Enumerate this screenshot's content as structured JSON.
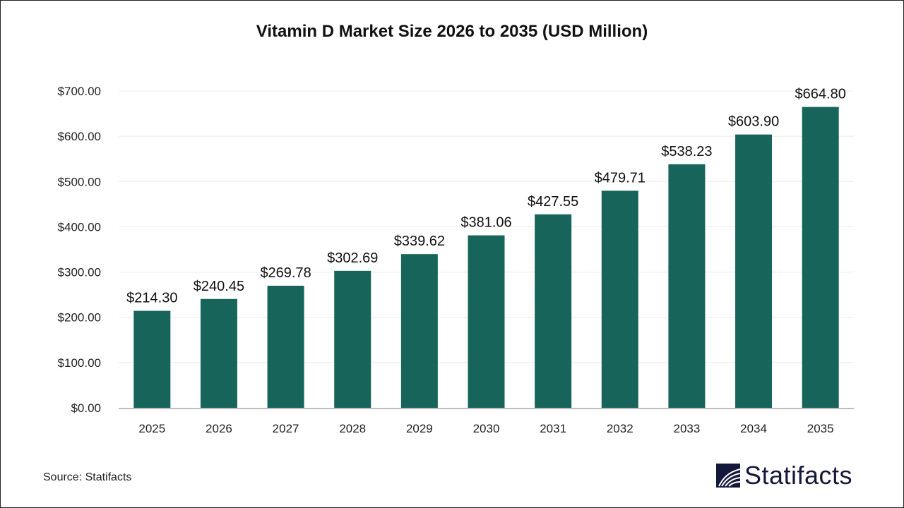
{
  "chart_data": {
    "type": "bar",
    "title": "Vitamin D Market Size 2026 to 2035 (USD Million)",
    "categories": [
      "2025",
      "2026",
      "2027",
      "2028",
      "2029",
      "2030",
      "2031",
      "2032",
      "2033",
      "2034",
      "2035"
    ],
    "values": [
      214.3,
      240.45,
      269.78,
      302.69,
      339.62,
      381.06,
      427.55,
      479.71,
      538.23,
      603.9,
      664.8
    ],
    "data_labels": [
      "$214.30",
      "$240.45",
      "$269.78",
      "$302.69",
      "$339.62",
      "$381.06",
      "$427.55",
      "$479.71",
      "$538.23",
      "$603.90",
      "$664.80"
    ],
    "yticks": [
      0,
      100,
      200,
      300,
      400,
      500,
      600,
      700
    ],
    "ytick_labels": [
      "$0.00",
      "$100.00",
      "$200.00",
      "$300.00",
      "$400.00",
      "$500.00",
      "$600.00",
      "$700.00"
    ],
    "ylim": [
      0,
      700
    ],
    "xlabel": "",
    "ylabel": "",
    "grid": true,
    "bar_color": "#17645a"
  },
  "source": "Source: Statifacts",
  "logo": {
    "text": "Statifacts",
    "color": "#14183a"
  }
}
